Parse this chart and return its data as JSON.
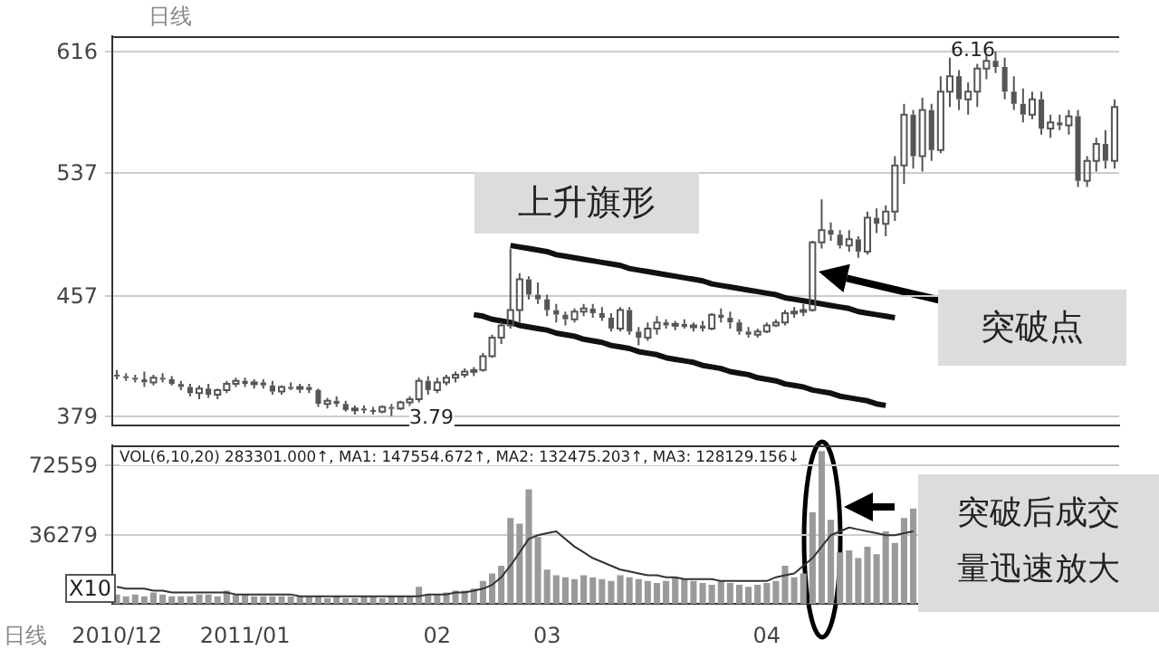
{
  "chart_data": [
    {
      "type": "candlestick",
      "title": "日线",
      "categories": [
        "2010/12",
        null,
        null,
        null,
        null,
        null,
        null,
        null,
        null,
        null,
        null,
        null,
        null,
        null,
        "2011/01",
        null,
        null,
        null,
        null,
        null,
        null,
        null,
        null,
        null,
        null,
        null,
        null,
        null,
        null,
        null,
        null,
        null,
        null,
        null,
        null,
        "02",
        null,
        null,
        null,
        null,
        null,
        null,
        null,
        null,
        null,
        null,
        null,
        "03",
        null,
        null,
        null,
        null,
        null,
        null,
        null,
        null,
        null,
        null,
        null,
        null,
        null,
        null,
        null,
        null,
        null,
        null,
        null,
        null,
        null,
        null,
        null,
        "04",
        null,
        null,
        null,
        null,
        null,
        null,
        null,
        null,
        null,
        null,
        null,
        null,
        null,
        null,
        null,
        null,
        null,
        null,
        null,
        null,
        null,
        null,
        null,
        null,
        null,
        null,
        null,
        null,
        null,
        null,
        null,
        null,
        null,
        null,
        null,
        null,
        null,
        null
      ],
      "ohlc": [
        [
          406,
          409,
          403,
          405
        ],
        [
          405,
          407,
          402,
          404
        ],
        [
          404,
          406,
          401,
          403
        ],
        [
          403,
          408,
          398,
          401
        ],
        [
          401,
          406,
          399,
          404
        ],
        [
          404,
          407,
          401,
          403
        ],
        [
          403,
          405,
          399,
          400
        ],
        [
          400,
          402,
          396,
          398
        ],
        [
          398,
          400,
          392,
          394
        ],
        [
          394,
          399,
          390,
          397
        ],
        [
          397,
          400,
          391,
          393
        ],
        [
          393,
          397,
          390,
          396
        ],
        [
          396,
          402,
          394,
          400
        ],
        [
          400,
          404,
          398,
          402
        ],
        [
          402,
          404,
          398,
          400
        ],
        [
          400,
          403,
          397,
          401
        ],
        [
          401,
          403,
          397,
          399
        ],
        [
          399,
          402,
          393,
          395
        ],
        [
          395,
          399,
          393,
          398
        ],
        [
          398,
          401,
          396,
          397
        ],
        [
          397,
          400,
          394,
          398
        ],
        [
          398,
          400,
          394,
          396
        ],
        [
          396,
          397,
          385,
          387
        ],
        [
          387,
          391,
          384,
          389
        ],
        [
          389,
          392,
          385,
          387
        ],
        [
          387,
          389,
          382,
          383
        ],
        [
          383,
          386,
          380,
          384
        ],
        [
          384,
          386,
          381,
          383
        ],
        [
          383,
          385,
          380,
          382
        ],
        [
          382,
          386,
          381,
          385
        ],
        [
          385,
          387,
          379,
          384
        ],
        [
          384,
          389,
          383,
          388
        ],
        [
          388,
          392,
          385,
          390
        ],
        [
          390,
          404,
          388,
          402
        ],
        [
          402,
          405,
          393,
          396
        ],
        [
          396,
          404,
          394,
          401
        ],
        [
          401,
          406,
          399,
          404
        ],
        [
          404,
          408,
          401,
          406
        ],
        [
          406,
          410,
          404,
          408
        ],
        [
          408,
          411,
          405,
          409
        ],
        [
          409,
          420,
          408,
          418
        ],
        [
          418,
          432,
          417,
          430
        ],
        [
          430,
          440,
          426,
          438
        ],
        [
          438,
          488,
          436,
          448
        ],
        [
          448,
          472,
          440,
          468
        ],
        [
          468,
          470,
          455,
          458
        ],
        [
          458,
          466,
          452,
          455
        ],
        [
          455,
          458,
          444,
          448
        ],
        [
          448,
          452,
          440,
          445
        ],
        [
          445,
          447,
          438,
          442
        ],
        [
          442,
          449,
          440,
          447
        ],
        [
          447,
          452,
          444,
          449
        ],
        [
          449,
          452,
          443,
          446
        ],
        [
          446,
          450,
          441,
          443
        ],
        [
          443,
          446,
          434,
          436
        ],
        [
          436,
          450,
          434,
          448
        ],
        [
          448,
          450,
          432,
          434
        ],
        [
          434,
          437,
          425,
          430
        ],
        [
          430,
          440,
          428,
          436
        ],
        [
          436,
          444,
          432,
          440
        ],
        [
          440,
          442,
          436,
          438
        ],
        [
          438,
          441,
          435,
          439
        ],
        [
          439,
          442,
          436,
          437
        ],
        [
          437,
          440,
          434,
          438
        ],
        [
          438,
          441,
          434,
          436
        ],
        [
          436,
          446,
          435,
          445
        ],
        [
          445,
          449,
          440,
          443
        ],
        [
          443,
          447,
          436,
          440
        ],
        [
          440,
          442,
          432,
          434
        ],
        [
          434,
          437,
          430,
          432
        ],
        [
          432,
          436,
          430,
          434
        ],
        [
          434,
          440,
          433,
          438
        ],
        [
          438,
          442,
          437,
          440
        ],
        [
          440,
          448,
          438,
          446
        ],
        [
          446,
          450,
          443,
          447
        ],
        [
          447,
          452,
          444,
          448
        ],
        [
          448,
          493,
          447,
          492
        ],
        [
          492,
          520,
          488,
          500
        ],
        [
          500,
          505,
          493,
          497
        ],
        [
          497,
          500,
          488,
          490
        ],
        [
          490,
          500,
          486,
          494
        ],
        [
          494,
          496,
          482,
          486
        ],
        [
          486,
          512,
          484,
          508
        ],
        [
          508,
          514,
          498,
          504
        ],
        [
          504,
          516,
          496,
          512
        ],
        [
          512,
          548,
          506,
          542
        ],
        [
          542,
          582,
          530,
          575
        ],
        [
          575,
          578,
          540,
          548
        ],
        [
          548,
          586,
          538,
          578
        ],
        [
          578,
          582,
          545,
          552
        ],
        [
          552,
          600,
          550,
          590
        ],
        [
          590,
          612,
          580,
          600
        ],
        [
          600,
          604,
          578,
          585
        ],
        [
          585,
          596,
          575,
          590
        ],
        [
          590,
          608,
          580,
          605
        ],
        [
          605,
          614,
          598,
          610
        ],
        [
          610,
          616,
          602,
          606
        ],
        [
          606,
          612,
          585,
          590
        ],
        [
          590,
          600,
          578,
          582
        ],
        [
          582,
          592,
          570,
          575
        ],
        [
          575,
          590,
          572,
          585
        ],
        [
          585,
          590,
          562,
          566
        ],
        [
          566,
          575,
          560,
          570
        ],
        [
          570,
          575,
          565,
          568
        ],
        [
          568,
          578,
          562,
          574
        ],
        [
          574,
          578,
          528,
          532
        ],
        [
          532,
          548,
          528,
          545
        ],
        [
          545,
          560,
          538,
          556
        ],
        [
          556,
          565,
          540,
          545
        ],
        [
          545,
          585,
          540,
          580
        ]
      ],
      "color": "#555555",
      "series": [
        {
          "type": "line",
          "color": "#111111",
          "values": [
            null,
            null,
            null,
            null,
            null,
            null,
            null,
            null,
            null,
            null,
            null,
            null,
            null,
            null,
            null,
            null,
            null,
            null,
            null,
            null,
            null,
            null,
            null,
            null,
            null,
            null,
            null,
            null,
            null,
            null,
            null,
            null,
            null,
            null,
            null,
            null,
            null,
            null,
            null,
            null,
            null,
            null,
            null,
            490,
            489,
            488,
            487,
            486,
            484,
            483,
            482,
            481,
            480,
            479,
            478,
            477,
            475,
            474,
            473,
            472,
            471,
            470,
            469,
            468,
            467,
            465,
            464,
            463,
            462,
            461,
            460,
            459,
            458,
            456,
            455,
            454,
            453,
            452,
            451,
            450,
            449,
            447,
            446,
            445,
            444,
            443,
            null,
            null,
            null,
            null,
            null,
            null,
            null,
            null,
            null,
            null,
            null,
            null,
            null,
            null,
            null,
            null,
            null,
            null,
            null,
            null,
            null,
            null,
            null,
            null
          ]
        },
        {
          "type": "line",
          "color": "#111111",
          "values": [
            null,
            null,
            null,
            null,
            null,
            null,
            null,
            null,
            null,
            null,
            null,
            null,
            null,
            null,
            null,
            null,
            null,
            null,
            null,
            null,
            null,
            null,
            null,
            null,
            null,
            null,
            null,
            null,
            null,
            null,
            null,
            null,
            null,
            null,
            null,
            null,
            null,
            null,
            null,
            445,
            444,
            442,
            441,
            440,
            438,
            437,
            436,
            435,
            433,
            432,
            431,
            429,
            428,
            427,
            425,
            424,
            423,
            421,
            420,
            419,
            417,
            416,
            415,
            414,
            412,
            411,
            410,
            408,
            407,
            406,
            404,
            403,
            402,
            400,
            399,
            398,
            396,
            395,
            394,
            392,
            391,
            390,
            389,
            387,
            386,
            null,
            null,
            null,
            null,
            null,
            null,
            null,
            null,
            null,
            null,
            null,
            null,
            null,
            null,
            null,
            null,
            null,
            null,
            null,
            null,
            null,
            null,
            null,
            null,
            null
          ]
        }
      ],
      "ylim": [
        373,
        626
      ],
      "yticks": [
        379,
        457,
        537,
        616
      ],
      "grid": "y",
      "tick_labels": "y",
      "annotations": [
        "3.79",
        "6.16",
        "上升旗形",
        "突破点"
      ]
    },
    {
      "type": "bar",
      "categories": [
        "2010/12",
        null,
        null,
        null,
        null,
        null,
        null,
        null,
        null,
        null,
        null,
        null,
        null,
        null,
        "2011/01",
        null,
        null,
        null,
        null,
        null,
        null,
        null,
        null,
        null,
        null,
        null,
        null,
        null,
        null,
        null,
        null,
        null,
        null,
        null,
        null,
        "02",
        null,
        null,
        null,
        null,
        null,
        null,
        null,
        null,
        null,
        null,
        null,
        "03",
        null,
        null,
        null,
        null,
        null,
        null,
        null,
        null,
        null,
        null,
        null,
        null,
        null,
        null,
        null,
        null,
        null,
        null,
        null,
        null,
        null,
        null,
        null,
        "04",
        null,
        null,
        null,
        null,
        null,
        null,
        null,
        null,
        null,
        null,
        null,
        null,
        null,
        null,
        null,
        null,
        null,
        null,
        null,
        null,
        null,
        null,
        null,
        null,
        null,
        null,
        null,
        null,
        null,
        null,
        null,
        null,
        null,
        null,
        null,
        null,
        null,
        null
      ],
      "series": [
        {
          "type": "bar",
          "color": "#9a9a9a",
          "values": [
            5000,
            4000,
            5000,
            4000,
            6000,
            5000,
            4000,
            4000,
            4000,
            5000,
            5000,
            4000,
            7000,
            5000,
            5000,
            4000,
            4000,
            4000,
            4000,
            4000,
            4000,
            4000,
            4000,
            3000,
            4000,
            3000,
            3000,
            4000,
            4000,
            3000,
            4000,
            4000,
            4000,
            9000,
            5000,
            5000,
            6000,
            7000,
            7000,
            8000,
            12000,
            16000,
            20000,
            45000,
            42000,
            60000,
            35000,
            18000,
            15000,
            14000,
            13000,
            15000,
            14000,
            13000,
            12000,
            15000,
            14000,
            13000,
            12000,
            11000,
            12000,
            14000,
            13000,
            12000,
            11000,
            10000,
            12000,
            11000,
            10000,
            9000,
            10000,
            11000,
            12000,
            20000,
            14000,
            16000,
            48000,
            80000,
            44000,
            27000,
            28000,
            24000,
            30000,
            26000,
            38000,
            32000,
            45000,
            50000,
            null,
            null,
            null,
            null,
            null,
            null,
            null,
            null,
            null,
            null,
            null,
            null,
            null,
            null,
            null,
            null,
            null,
            null,
            null,
            null,
            null,
            null
          ]
        },
        {
          "type": "line",
          "color": "#333333",
          "values": [
            9000,
            8000,
            8000,
            8000,
            7000,
            7000,
            6000,
            6000,
            6000,
            6000,
            6000,
            6000,
            6000,
            5000,
            5000,
            5000,
            5000,
            5000,
            5000,
            5000,
            4000,
            4000,
            4000,
            4000,
            4000,
            4000,
            4000,
            4000,
            4000,
            4000,
            4000,
            4000,
            4000,
            4000,
            5000,
            5000,
            5000,
            6000,
            6000,
            7000,
            8000,
            10000,
            14000,
            20000,
            27000,
            34000,
            36000,
            37000,
            38000,
            34000,
            30000,
            27000,
            24000,
            22000,
            20000,
            18000,
            17000,
            16000,
            15000,
            15000,
            14000,
            14000,
            13000,
            13000,
            13000,
            13000,
            12000,
            12000,
            12000,
            12000,
            12000,
            12000,
            14000,
            15000,
            16000,
            20000,
            24000,
            30000,
            36000,
            38000,
            40000,
            39000,
            38000,
            37000,
            36000,
            36000,
            37000,
            38000,
            null,
            null,
            null,
            null,
            null,
            null,
            null,
            null,
            null,
            null,
            null,
            null,
            null,
            null,
            null,
            null,
            null,
            null,
            null,
            null,
            null,
            null
          ]
        }
      ],
      "ylim": [
        0,
        83000
      ],
      "yticks": [
        36279,
        72559
      ],
      "grid": "y",
      "annotations": [
        "VOL(6,10,20) 283301.000↑, MA1: 147554.672↑, MA2: 132475.203↑, MA3: 128129.156↓",
        "X10",
        "日线",
        "突破后成交量迅速放大"
      ]
    }
  ]
}
